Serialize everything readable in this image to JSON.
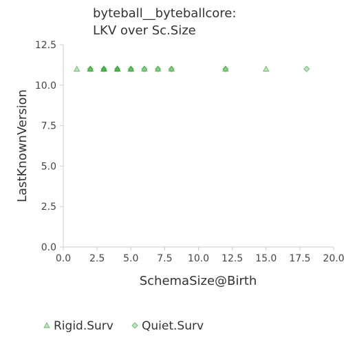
{
  "chart_data": {
    "type": "scatter",
    "title_lines": [
      "byteball__byteballcore:",
      "LKV over Sc.Size"
    ],
    "xlabel": "SchemaSize@Birth",
    "ylabel": "LastKnownVersion",
    "xlim": [
      0,
      20
    ],
    "ylim": [
      0,
      12.5
    ],
    "xticks": [
      "0.0",
      "2.5",
      "5.0",
      "7.5",
      "10.0",
      "12.5",
      "15.0",
      "17.5",
      "20.0"
    ],
    "yticks": [
      "0.0",
      "2.5",
      "5.0",
      "7.5",
      "10.0",
      "12.5"
    ],
    "grid": false,
    "legend_position": "bottom",
    "series": [
      {
        "name": "Rigid.Surv",
        "marker": "triangle",
        "color": "#2ca02c",
        "points": [
          [
            1,
            11
          ],
          [
            2,
            11
          ],
          [
            2,
            11
          ],
          [
            3,
            11
          ],
          [
            3,
            11
          ],
          [
            3,
            11
          ],
          [
            4,
            11
          ],
          [
            4,
            11
          ],
          [
            4,
            11
          ],
          [
            5,
            11
          ],
          [
            5,
            11
          ],
          [
            6,
            11
          ],
          [
            7,
            11
          ],
          [
            8,
            11
          ],
          [
            12,
            11
          ],
          [
            15,
            11
          ]
        ]
      },
      {
        "name": "Quiet.Surv",
        "marker": "diamond",
        "color": "#2ca02c",
        "points": [
          [
            2,
            11
          ],
          [
            3,
            11
          ],
          [
            4,
            11
          ],
          [
            5,
            11
          ],
          [
            6,
            11
          ],
          [
            7,
            11
          ],
          [
            8,
            11
          ],
          [
            12,
            11
          ],
          [
            18,
            11
          ]
        ]
      }
    ]
  }
}
